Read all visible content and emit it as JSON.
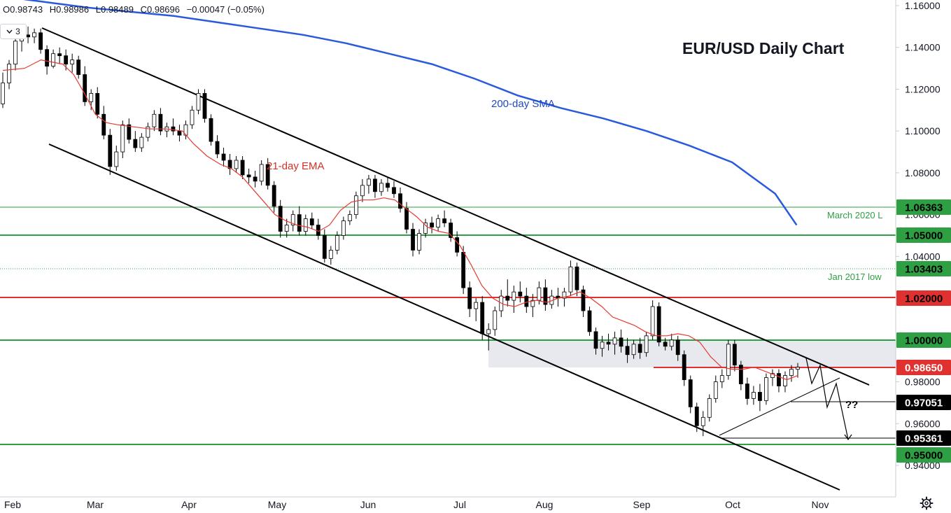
{
  "header": {
    "ohlc": {
      "open": "O0.98743",
      "high": "H0.98986",
      "low": "L0.98489",
      "close": "C0.98696",
      "change": "−0.00047 (−0.05%)"
    },
    "interval_value": "3"
  },
  "chart_data": {
    "type": "candlestick",
    "title": "EUR/USD Daily Chart",
    "xlabel": "",
    "ylabel": "",
    "x_ticks": [
      "Feb",
      "Mar",
      "Apr",
      "May",
      "Jun",
      "Jul",
      "Aug",
      "Sep",
      "Oct",
      "Nov"
    ],
    "y_ticks": [
      "1.16000",
      "1.14000",
      "1.12000",
      "1.10000",
      "1.08000",
      "1.06000",
      "1.04000",
      "0.98000",
      "0.96000",
      "0.94000"
    ],
    "ylim": [
      0.935,
      1.162
    ],
    "grid": false,
    "series": [
      {
        "name": "200-day SMA",
        "color": "#2a5adc",
        "values": [
          [
            1,
            1.163
          ],
          [
            4,
            1.159
          ],
          [
            6,
            1.157
          ],
          [
            8,
            1.155
          ],
          [
            10,
            1.152
          ],
          [
            12,
            1.149
          ],
          [
            14,
            1.146
          ],
          [
            16,
            1.142
          ],
          [
            18,
            1.137
          ],
          [
            20,
            1.132
          ],
          [
            22,
            1.125
          ],
          [
            24,
            1.117
          ],
          [
            26,
            1.111
          ],
          [
            28,
            1.106
          ],
          [
            30,
            1.1
          ],
          [
            32,
            1.093
          ],
          [
            34,
            1.085
          ],
          [
            36,
            1.07
          ],
          [
            37,
            1.055
          ]
        ]
      },
      {
        "name": "21-day EMA",
        "color": "#e8392f",
        "values": [
          [
            0,
            1.129
          ],
          [
            0.8,
            1.13
          ],
          [
            1.4,
            1.134
          ],
          [
            2.2,
            1.132
          ],
          [
            2.6,
            1.127
          ],
          [
            3.0,
            1.118
          ],
          [
            3.4,
            1.108
          ],
          [
            3.8,
            1.104
          ],
          [
            4.2,
            1.103
          ],
          [
            4.8,
            1.102
          ],
          [
            5.4,
            1.101
          ],
          [
            6.0,
            1.101
          ],
          [
            6.6,
            1.1
          ],
          [
            7.0,
            1.094
          ],
          [
            7.5,
            1.088
          ],
          [
            8.0,
            1.084
          ],
          [
            8.4,
            1.082
          ],
          [
            8.8,
            1.078
          ],
          [
            9.2,
            1.072
          ],
          [
            9.6,
            1.066
          ],
          [
            10.0,
            1.06
          ],
          [
            10.4,
            1.057
          ],
          [
            10.8,
            1.055
          ],
          [
            11.2,
            1.054
          ],
          [
            11.6,
            1.052
          ],
          [
            12.0,
            1.055
          ],
          [
            12.4,
            1.062
          ],
          [
            12.8,
            1.066
          ],
          [
            13.2,
            1.067
          ],
          [
            13.6,
            1.067
          ],
          [
            14.0,
            1.068
          ],
          [
            14.4,
            1.067
          ],
          [
            14.8,
            1.063
          ],
          [
            15.2,
            1.059
          ],
          [
            15.6,
            1.054
          ],
          [
            16.0,
            1.052
          ],
          [
            16.4,
            1.051
          ],
          [
            16.8,
            1.045
          ],
          [
            17.2,
            1.036
          ],
          [
            17.6,
            1.026
          ],
          [
            18.0,
            1.02
          ],
          [
            18.4,
            1.017
          ],
          [
            18.8,
            1.016
          ],
          [
            19.2,
            1.018
          ],
          [
            19.6,
            1.019
          ],
          [
            20.0,
            1.018
          ],
          [
            20.4,
            1.02
          ],
          [
            20.8,
            1.021
          ],
          [
            21.2,
            1.023
          ],
          [
            21.6,
            1.02
          ],
          [
            22.0,
            1.016
          ],
          [
            22.4,
            1.011
          ],
          [
            22.8,
            1.009
          ],
          [
            23.2,
            1.007
          ],
          [
            23.6,
            1.004
          ],
          [
            24.0,
            1.002
          ],
          [
            24.4,
            1.002
          ],
          [
            24.8,
            1.003
          ],
          [
            25.2,
            1.002
          ],
          [
            25.6,
            0.999
          ],
          [
            26.0,
            0.992
          ],
          [
            26.4,
            0.987
          ],
          [
            26.8,
            0.986
          ],
          [
            27.2,
            0.986
          ],
          [
            27.6,
            0.987
          ],
          [
            28.0,
            0.985
          ],
          [
            28.4,
            0.983
          ],
          [
            28.8,
            0.981
          ],
          [
            29.2,
            0.983
          ]
        ]
      }
    ],
    "annotations": {
      "sma_label": "200-day SMA",
      "ema_label": "21-day EMA",
      "march_label": "March 2020 L",
      "jan_label": "Jan 2017 low",
      "question": "??"
    },
    "levels": [
      {
        "value": "1.06363",
        "color": "#2ea043",
        "bg": "#2ea043",
        "fg": "#000000"
      },
      {
        "value": "1.05000",
        "color": "#2ea043",
        "bg": "#2ea043",
        "fg": "#000000"
      },
      {
        "value": "1.03403",
        "color": "#2ea043",
        "bg": "#2ea043",
        "fg": "#000000"
      },
      {
        "value": "1.02000",
        "color": "#e03131",
        "bg": "#e03131",
        "fg": "#000000"
      },
      {
        "value": "1.00000",
        "color": "#2ea043",
        "bg": "#2ea043",
        "fg": "#000000"
      },
      {
        "value": "0.98650",
        "color": "#e03131",
        "bg": "#e03131",
        "fg": "#ffffff"
      },
      {
        "value": "0.97051",
        "color": "#000000",
        "bg": "#000000",
        "fg": "#ffffff"
      },
      {
        "value": "0.95361",
        "color": "#000000",
        "bg": "#000000",
        "fg": "#ffffff"
      },
      {
        "value": "0.95000",
        "color": "#2ea043",
        "bg": "#2ea043",
        "fg": "#000000"
      }
    ],
    "candle_colors": {
      "up": "#ffffff",
      "down": "#000000",
      "border": "#000000"
    },
    "candles": [
      [
        1.113,
        1.128,
        1.111,
        1.123
      ],
      [
        1.123,
        1.134,
        1.12,
        1.132
      ],
      [
        1.132,
        1.145,
        1.129,
        1.143
      ],
      [
        1.143,
        1.149,
        1.138,
        1.146
      ],
      [
        1.146,
        1.15,
        1.142,
        1.145
      ],
      [
        1.145,
        1.149,
        1.142,
        1.147
      ],
      [
        1.147,
        1.149,
        1.137,
        1.139
      ],
      [
        1.139,
        1.141,
        1.127,
        1.131
      ],
      [
        1.131,
        1.139,
        1.13,
        1.137
      ],
      [
        1.137,
        1.14,
        1.132,
        1.136
      ],
      [
        1.136,
        1.139,
        1.129,
        1.132
      ],
      [
        1.132,
        1.137,
        1.128,
        1.134
      ],
      [
        1.134,
        1.136,
        1.125,
        1.127
      ],
      [
        1.127,
        1.131,
        1.112,
        1.114
      ],
      [
        1.114,
        1.12,
        1.11,
        1.118
      ],
      [
        1.118,
        1.121,
        1.106,
        1.108
      ],
      [
        1.108,
        1.112,
        1.096,
        1.098
      ],
      [
        1.098,
        1.101,
        1.079,
        1.083
      ],
      [
        1.083,
        1.093,
        1.081,
        1.09
      ],
      [
        1.09,
        1.105,
        1.087,
        1.103
      ],
      [
        1.103,
        1.106,
        1.094,
        1.096
      ],
      [
        1.096,
        1.1,
        1.09,
        1.092
      ],
      [
        1.092,
        1.099,
        1.09,
        1.097
      ],
      [
        1.097,
        1.104,
        1.095,
        1.102
      ],
      [
        1.102,
        1.11,
        1.1,
        1.108
      ],
      [
        1.108,
        1.111,
        1.098,
        1.1
      ],
      [
        1.1,
        1.104,
        1.097,
        1.102
      ],
      [
        1.102,
        1.106,
        1.098,
        1.1
      ],
      [
        1.1,
        1.103,
        1.095,
        1.098
      ],
      [
        1.098,
        1.105,
        1.096,
        1.103
      ],
      [
        1.103,
        1.112,
        1.101,
        1.11
      ],
      [
        1.11,
        1.12,
        1.108,
        1.118
      ],
      [
        1.118,
        1.12,
        1.104,
        1.106
      ],
      [
        1.106,
        1.108,
        1.093,
        1.095
      ],
      [
        1.095,
        1.098,
        1.087,
        1.089
      ],
      [
        1.089,
        1.092,
        1.083,
        1.086
      ],
      [
        1.086,
        1.089,
        1.079,
        1.082
      ],
      [
        1.082,
        1.088,
        1.08,
        1.086
      ],
      [
        1.086,
        1.088,
        1.077,
        1.079
      ],
      [
        1.079,
        1.082,
        1.075,
        1.078
      ],
      [
        1.078,
        1.081,
        1.073,
        1.076
      ],
      [
        1.076,
        1.086,
        1.074,
        1.084
      ],
      [
        1.084,
        1.087,
        1.072,
        1.074
      ],
      [
        1.074,
        1.076,
        1.061,
        1.064
      ],
      [
        1.064,
        1.067,
        1.049,
        1.052
      ],
      [
        1.052,
        1.058,
        1.049,
        1.055
      ],
      [
        1.055,
        1.062,
        1.052,
        1.06
      ],
      [
        1.06,
        1.064,
        1.05,
        1.052
      ],
      [
        1.052,
        1.06,
        1.05,
        1.058
      ],
      [
        1.058,
        1.061,
        1.053,
        1.055
      ],
      [
        1.055,
        1.058,
        1.048,
        1.05
      ],
      [
        1.05,
        1.053,
        1.037,
        1.039
      ],
      [
        1.039,
        1.045,
        1.036,
        1.043
      ],
      [
        1.043,
        1.052,
        1.041,
        1.05
      ],
      [
        1.05,
        1.059,
        1.048,
        1.057
      ],
      [
        1.057,
        1.062,
        1.055,
        1.06
      ],
      [
        1.06,
        1.071,
        1.058,
        1.069
      ],
      [
        1.069,
        1.077,
        1.066,
        1.074
      ],
      [
        1.074,
        1.079,
        1.07,
        1.077
      ],
      [
        1.077,
        1.079,
        1.068,
        1.071
      ],
      [
        1.071,
        1.077,
        1.069,
        1.075
      ],
      [
        1.075,
        1.078,
        1.071,
        1.073
      ],
      [
        1.073,
        1.076,
        1.068,
        1.07
      ],
      [
        1.07,
        1.073,
        1.061,
        1.063
      ],
      [
        1.063,
        1.066,
        1.051,
        1.053
      ],
      [
        1.053,
        1.056,
        1.04,
        1.043
      ],
      [
        1.043,
        1.053,
        1.041,
        1.051
      ],
      [
        1.051,
        1.058,
        1.049,
        1.056
      ],
      [
        1.056,
        1.059,
        1.051,
        1.054
      ],
      [
        1.054,
        1.06,
        1.052,
        1.058
      ],
      [
        1.058,
        1.062,
        1.054,
        1.056
      ],
      [
        1.056,
        1.058,
        1.047,
        1.049
      ],
      [
        1.049,
        1.052,
        1.04,
        1.042
      ],
      [
        1.042,
        1.045,
        1.022,
        1.025
      ],
      [
        1.025,
        1.028,
        1.011,
        1.015
      ],
      [
        1.015,
        1.02,
        1.009,
        1.018
      ],
      [
        1.018,
        1.021,
        1.0,
        1.003
      ],
      [
        1.003,
        1.008,
        0.995,
        1.005
      ],
      [
        1.005,
        1.016,
        1.002,
        1.014
      ],
      [
        1.014,
        1.024,
        1.011,
        1.021
      ],
      [
        1.021,
        1.029,
        1.016,
        1.019
      ],
      [
        1.019,
        1.026,
        1.013,
        1.023
      ],
      [
        1.023,
        1.028,
        1.018,
        1.021
      ],
      [
        1.021,
        1.025,
        1.013,
        1.016
      ],
      [
        1.016,
        1.022,
        1.011,
        1.019
      ],
      [
        1.019,
        1.028,
        1.017,
        1.025
      ],
      [
        1.025,
        1.029,
        1.014,
        1.017
      ],
      [
        1.017,
        1.024,
        1.015,
        1.021
      ],
      [
        1.021,
        1.025,
        1.016,
        1.02
      ],
      [
        1.02,
        1.025,
        1.016,
        1.023
      ],
      [
        1.023,
        1.038,
        1.021,
        1.035
      ],
      [
        1.035,
        1.037,
        1.021,
        1.024
      ],
      [
        1.024,
        1.026,
        1.011,
        1.014
      ],
      [
        1.014,
        1.016,
        1.002,
        1.004
      ],
      [
        1.004,
        1.006,
        0.993,
        0.996
      ],
      [
        0.996,
        1.002,
        0.992,
        0.999
      ],
      [
        0.999,
        1.003,
        0.995,
        0.998
      ],
      [
        0.998,
        1.004,
        0.993,
        1.001
      ],
      [
        1.001,
        1.005,
        0.994,
        0.997
      ],
      [
        0.997,
        1.001,
        0.989,
        0.993
      ],
      [
        0.993,
        1.0,
        0.991,
        0.998
      ],
      [
        0.998,
        1.001,
        0.991,
        0.994
      ],
      [
        0.994,
        1.004,
        0.992,
        1.002
      ],
      [
        1.002,
        1.019,
        1.0,
        1.016
      ],
      [
        1.016,
        1.018,
        0.997,
        0.999
      ],
      [
        0.999,
        1.001,
        0.995,
        0.997
      ],
      [
        0.997,
        1.003,
        0.995,
        1.0
      ],
      [
        1.0,
        1.002,
        0.99,
        0.993
      ],
      [
        0.993,
        0.995,
        0.978,
        0.981
      ],
      [
        0.981,
        0.983,
        0.965,
        0.968
      ],
      [
        0.968,
        0.97,
        0.956,
        0.959
      ],
      [
        0.959,
        0.966,
        0.954,
        0.963
      ],
      [
        0.963,
        0.974,
        0.961,
        0.972
      ],
      [
        0.972,
        0.983,
        0.97,
        0.98
      ],
      [
        0.98,
        0.986,
        0.977,
        0.983
      ],
      [
        0.983,
        1.0,
        0.981,
        0.998
      ],
      [
        0.998,
        1.0,
        0.985,
        0.988
      ],
      [
        0.988,
        0.99,
        0.976,
        0.979
      ],
      [
        0.979,
        0.982,
        0.969,
        0.972
      ],
      [
        0.972,
        0.978,
        0.969,
        0.975
      ],
      [
        0.975,
        0.979,
        0.966,
        0.971
      ],
      [
        0.971,
        0.984,
        0.969,
        0.982
      ],
      [
        0.982,
        0.986,
        0.978,
        0.984
      ],
      [
        0.984,
        0.986,
        0.975,
        0.978
      ],
      [
        0.978,
        0.985,
        0.975,
        0.983
      ],
      [
        0.983,
        0.988,
        0.98,
        0.986
      ],
      [
        0.986,
        0.989,
        0.982,
        0.987
      ]
    ]
  },
  "footer": {
    "settings_icon": "gear-icon"
  }
}
